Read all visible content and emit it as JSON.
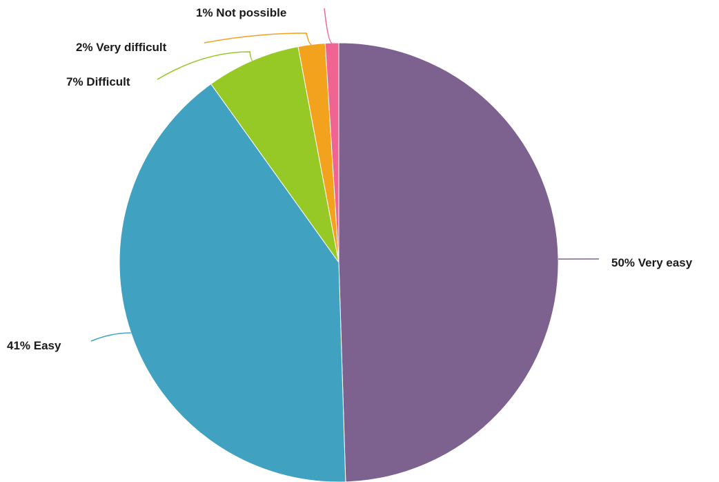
{
  "chart_data": {
    "type": "pie",
    "title": "",
    "slices": [
      {
        "label": "Very easy",
        "value": 50,
        "display": "50% Very easy",
        "color": "#7d628f"
      },
      {
        "label": "Easy",
        "value": 41,
        "display": "41% Easy",
        "color": "#40a1c0"
      },
      {
        "label": "Difficult",
        "value": 7,
        "display": "7% Difficult",
        "color": "#96c826"
      },
      {
        "label": "Very difficult",
        "value": 2,
        "display": "2% Very difficult",
        "color": "#f3a21d"
      },
      {
        "label": "Not possible",
        "value": 1,
        "display": "1% Not possible",
        "color": "#ef6491"
      }
    ],
    "start_angle": "12 o'clock",
    "direction": "clockwise",
    "legend": "none",
    "label_style": "outside labels with leader lines"
  }
}
